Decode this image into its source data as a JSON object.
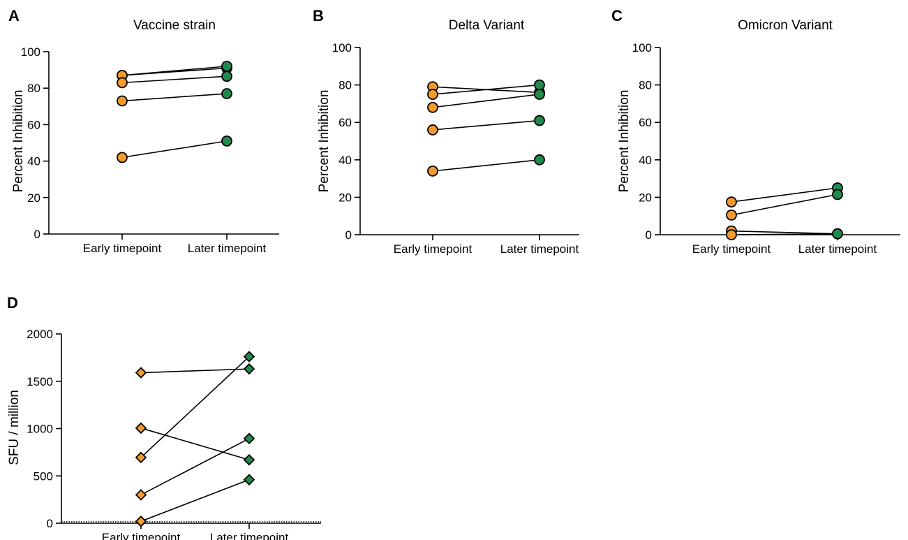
{
  "colors": {
    "early": "#f39a2c",
    "later": "#1f8a4c",
    "line": "#000000"
  },
  "chart_data": [
    {
      "panel": "A",
      "type": "scatter",
      "title": "Vaccine strain",
      "ylabel": "Percent Inhibition",
      "categories": [
        "Early timepoint",
        "Later timepoint"
      ],
      "ylim": [
        0,
        100
      ],
      "yticks": [
        0,
        20,
        40,
        60,
        80,
        100
      ],
      "marker": "circle",
      "pairs": [
        [
          87,
          91
        ],
        [
          87,
          92
        ],
        [
          83,
          86.5
        ],
        [
          73,
          77
        ],
        [
          42,
          51
        ]
      ]
    },
    {
      "panel": "B",
      "type": "scatter",
      "title": "Delta Variant",
      "ylabel": "Percent Inhibition",
      "categories": [
        "Early timepoint",
        "Later timepoint"
      ],
      "ylim": [
        0,
        100
      ],
      "yticks": [
        0,
        20,
        40,
        60,
        80,
        100
      ],
      "marker": "circle",
      "pairs": [
        [
          79,
          76
        ],
        [
          75,
          80
        ],
        [
          68,
          75
        ],
        [
          56,
          61
        ],
        [
          34,
          40
        ]
      ]
    },
    {
      "panel": "C",
      "type": "scatter",
      "title": "Omicron Variant",
      "ylabel": "Percent Inhibition",
      "categories": [
        "Early timepoint",
        "Later timepoint"
      ],
      "ylim": [
        0,
        100
      ],
      "yticks": [
        0,
        20,
        40,
        60,
        80,
        100
      ],
      "marker": "circle",
      "pairs": [
        [
          17.5,
          25
        ],
        [
          10.5,
          21.5
        ],
        [
          2,
          0.5
        ],
        [
          0,
          0.5
        ]
      ]
    },
    {
      "panel": "D",
      "type": "scatter",
      "title": "",
      "ylabel": "SFU / million",
      "categories": [
        "Early timepoint",
        "Later timepoint"
      ],
      "ylim": [
        0,
        2000
      ],
      "yticks": [
        0,
        500,
        1000,
        1500,
        2000
      ],
      "marker": "diamond",
      "dotted_baseline": 15,
      "pairs": [
        [
          1590,
          1630
        ],
        [
          1005,
          670
        ],
        [
          695,
          1760
        ],
        [
          300,
          895
        ],
        [
          20,
          460
        ]
      ]
    }
  ]
}
